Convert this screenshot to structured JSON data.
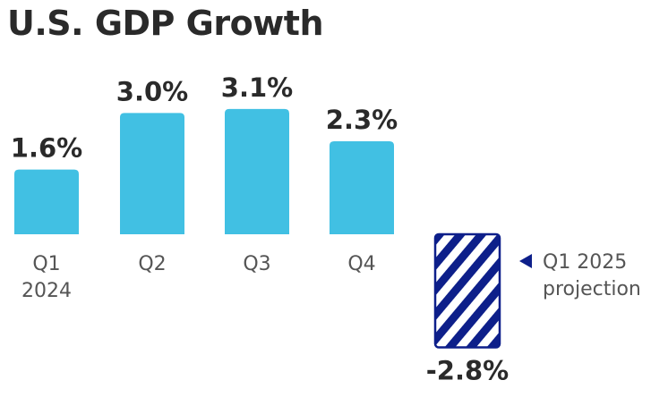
{
  "chart_data": {
    "type": "bar",
    "title": "U.S. GDP Growth",
    "categories": [
      "Q1\n2024",
      "Q2",
      "Q3",
      "Q4",
      "Q1 2025\nprojection"
    ],
    "values": [
      1.6,
      3.0,
      3.1,
      2.3,
      -2.8
    ],
    "value_labels": [
      "1.6%",
      "3.0%",
      "3.1%",
      "2.3%",
      "-2.8%"
    ],
    "projection_index": 4,
    "xlabel": "",
    "ylabel": "",
    "ylim": [
      -2.8,
      3.1
    ],
    "grid": false,
    "colors": {
      "actual": "#41c0e3",
      "projection": "#0d1f8a",
      "text": "#2a2a2a",
      "category": "#555555"
    }
  }
}
